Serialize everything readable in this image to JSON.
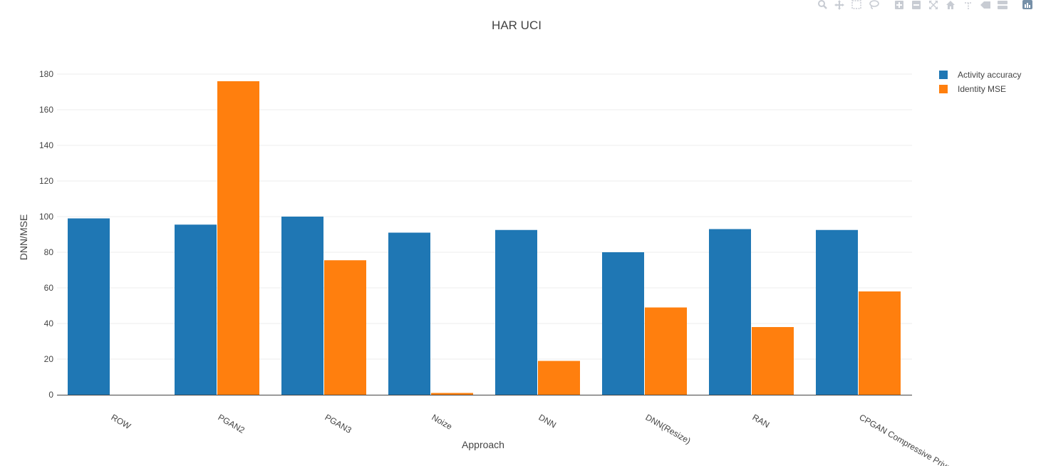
{
  "modebar": {
    "buttons": [
      {
        "name": "zoom-icon"
      },
      {
        "name": "pan-icon"
      },
      {
        "name": "box-select-icon"
      },
      {
        "name": "lasso-select-icon"
      },
      {
        "name": "zoom-in-icon"
      },
      {
        "name": "zoom-out-icon"
      },
      {
        "name": "autoscale-icon"
      },
      {
        "name": "reset-axes-icon"
      },
      {
        "name": "spike-lines-icon"
      },
      {
        "name": "hover-closest-icon"
      },
      {
        "name": "hover-compare-icon"
      },
      {
        "name": "plotly-logo-icon"
      }
    ],
    "icon_color": "#c8ccd3",
    "logo_color": "#7690a8"
  },
  "chart_data": {
    "type": "bar",
    "title": "HAR UCI",
    "xlabel": "Approach",
    "ylabel": "DNN/MSE",
    "categories": [
      "ROW",
      "PGAN2",
      "PGAN3",
      "Noize",
      "DNN",
      "DNN(Resize)",
      "RAN",
      "CPGAN Compressive Privacy"
    ],
    "series": [
      {
        "name": "Activity accuracy",
        "color": "#1f77b4",
        "values": [
          99,
          95.5,
          100,
          91,
          92.5,
          80,
          93,
          92.5
        ]
      },
      {
        "name": "Identity MSE",
        "color": "#ff7f0e",
        "values": [
          0,
          176,
          75.5,
          1,
          19,
          49,
          38,
          58
        ]
      }
    ],
    "ylim": [
      0,
      180
    ],
    "yticks": [
      0,
      20,
      40,
      60,
      80,
      100,
      120,
      140,
      160,
      180
    ],
    "grid": true,
    "legend_position": "top-right"
  }
}
